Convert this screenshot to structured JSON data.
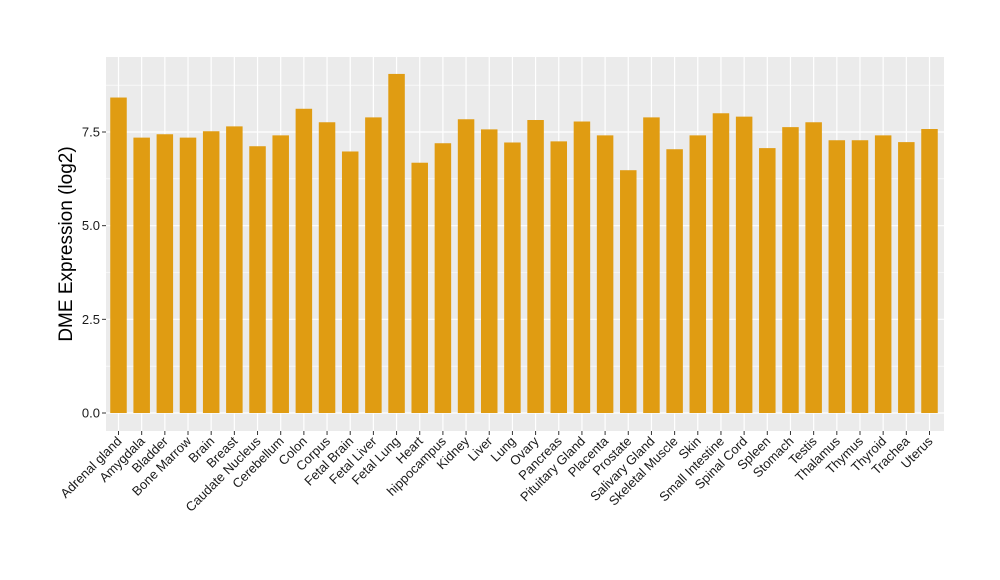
{
  "chart_data": {
    "type": "bar",
    "title": "",
    "xlabel": "",
    "ylabel": "DME Expression (log2)",
    "ylim": [
      -0.55,
      9.5
    ],
    "yticks": [
      0.0,
      2.5,
      5.0,
      7.5
    ],
    "ytick_labels": [
      "0.0",
      "2.5",
      "5.0",
      "7.5"
    ],
    "grid": true,
    "legend": "none",
    "bar_color": "#E09C12",
    "panel_background": "#EBEBEB",
    "gridline_color": "#FFFFFF",
    "categories": [
      "Adrenal gland",
      "Amygdala",
      "Bladder",
      "Bone Marrow",
      "Brain",
      "Breast",
      "Caudate Nucleus",
      "Cerebellum",
      "Colon",
      "Corpus",
      "Fetal Brain",
      "Fetal Liver",
      "Fetal Lung",
      "Heart",
      "hippocampus",
      "Kidney",
      "Liver",
      "Lung",
      "Ovary",
      "Pancreas",
      "Pituitary Gland",
      "Placenta",
      "Prostate",
      "Salivary Gland",
      "Skeletal Muscle",
      "Skin",
      "Small Intestine",
      "Spinal Cord",
      "Spleen",
      "Stomach",
      "Testis",
      "Thalamus",
      "Thymus",
      "Thyroid",
      "Trachea",
      "Uterus"
    ],
    "values": [
      8.42,
      7.35,
      7.44,
      7.35,
      7.52,
      7.65,
      7.12,
      7.41,
      8.12,
      7.76,
      6.98,
      7.89,
      9.05,
      6.68,
      7.2,
      7.84,
      7.57,
      7.22,
      7.82,
      7.25,
      7.78,
      7.41,
      6.48,
      7.89,
      7.04,
      7.41,
      8.0,
      7.91,
      7.07,
      7.63,
      7.76,
      7.28,
      7.28,
      7.41,
      7.23,
      7.58
    ]
  }
}
